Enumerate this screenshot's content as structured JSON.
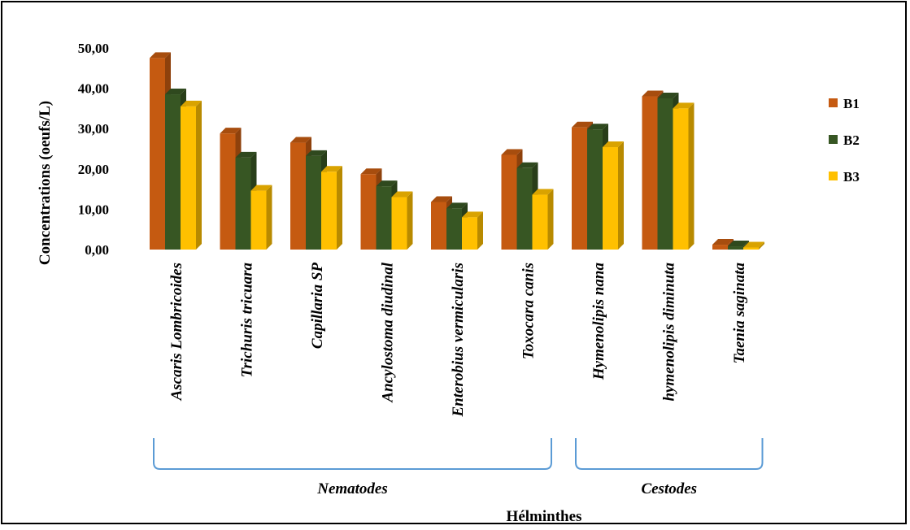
{
  "chart_data": {
    "type": "bar",
    "title": "",
    "ylabel": "Concentrations (oeufs/L)",
    "xlabel": "Hélminthes",
    "ylim": [
      0,
      50
    ],
    "yticks": [
      "0,00",
      "10,00",
      "20,00",
      "30,00",
      "40,00",
      "50,00"
    ],
    "categories": [
      "Ascaris Lombricoides",
      "Trichuris tricuara",
      "Capillaria SP",
      "Ancylostoma diudinal",
      "Enterobius vermicularis",
      "Toxocara canis",
      "Hymenolipis nana",
      "hymenolipis diminuta",
      "Taenia saginata"
    ],
    "series": [
      {
        "name": "B1",
        "color": "#c55a11",
        "values": [
          47.5,
          28.8,
          26.5,
          18.7,
          11.8,
          23.5,
          30.3,
          38.0,
          1.2
        ]
      },
      {
        "name": "B2",
        "color": "#375623",
        "values": [
          38.5,
          22.8,
          23.2,
          15.7,
          10.2,
          20.2,
          29.8,
          37.5,
          0.8
        ]
      },
      {
        "name": "B3",
        "color": "#ffc000",
        "values": [
          35.5,
          14.6,
          19.3,
          13.0,
          8.0,
          13.6,
          25.4,
          35.0,
          0.5
        ]
      }
    ],
    "groups": [
      {
        "label": "Nematodes",
        "categories": [
          0,
          1,
          2,
          3,
          4,
          5
        ]
      },
      {
        "label": "Cestodes",
        "categories": [
          6,
          7,
          8
        ]
      }
    ],
    "legend_position": "right",
    "grid": false
  }
}
